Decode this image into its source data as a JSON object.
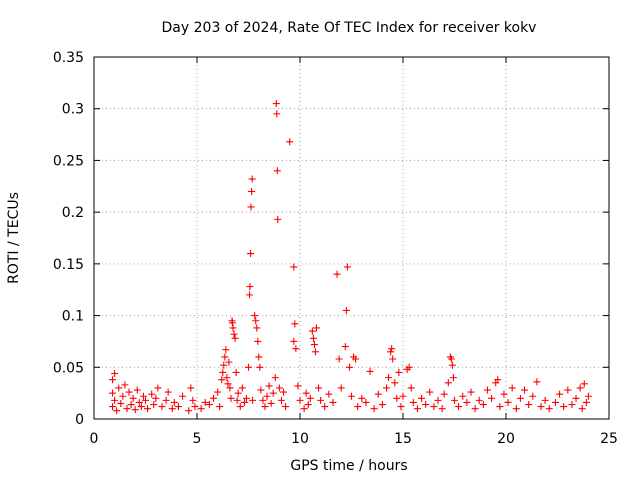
{
  "chart_data": {
    "type": "scatter",
    "title": "Day 203 of 2024, Rate Of TEC Index for receiver kokv",
    "xlabel": "GPS time / hours",
    "ylabel": "ROTI / TECUs",
    "xlim": [
      0,
      25
    ],
    "ylim": [
      0,
      0.35
    ],
    "x_ticks": [
      "0",
      "5",
      "10",
      "15",
      "20",
      "25"
    ],
    "y_ticks": [
      "0",
      "0.05",
      "0.1",
      "0.15",
      "0.2",
      "0.25",
      "0.3",
      "0.35"
    ],
    "grid": true,
    "legend": "none",
    "marker": "plus",
    "colors": {
      "marker": "#ff0000"
    },
    "series": [
      {
        "points": [
          [
            0.9,
            0.012
          ],
          [
            0.9,
            0.025
          ],
          [
            0.9,
            0.038
          ],
          [
            1.0,
            0.044
          ],
          [
            1.0,
            0.018
          ],
          [
            1.1,
            0.008
          ],
          [
            1.2,
            0.03
          ],
          [
            1.3,
            0.015
          ],
          [
            1.4,
            0.022
          ],
          [
            1.5,
            0.033
          ],
          [
            1.6,
            0.01
          ],
          [
            1.7,
            0.026
          ],
          [
            1.8,
            0.014
          ],
          [
            1.9,
            0.02
          ],
          [
            2.0,
            0.009
          ],
          [
            2.1,
            0.028
          ],
          [
            2.2,
            0.016
          ],
          [
            2.3,
            0.012
          ],
          [
            2.4,
            0.022
          ],
          [
            2.5,
            0.018
          ],
          [
            2.6,
            0.01
          ],
          [
            2.8,
            0.024
          ],
          [
            2.9,
            0.014
          ],
          [
            3.0,
            0.02
          ],
          [
            3.1,
            0.03
          ],
          [
            3.3,
            0.012
          ],
          [
            3.5,
            0.018
          ],
          [
            3.6,
            0.026
          ],
          [
            3.8,
            0.01
          ],
          [
            3.9,
            0.016
          ],
          [
            4.1,
            0.012
          ],
          [
            4.3,
            0.022
          ],
          [
            4.6,
            0.008
          ],
          [
            4.7,
            0.03
          ],
          [
            4.8,
            0.018
          ],
          [
            4.9,
            0.012
          ],
          [
            5.2,
            0.01
          ],
          [
            5.4,
            0.016
          ],
          [
            5.6,
            0.014
          ],
          [
            5.8,
            0.02
          ],
          [
            6.0,
            0.026
          ],
          [
            6.1,
            0.012
          ],
          [
            6.2,
            0.038
          ],
          [
            6.25,
            0.045
          ],
          [
            6.3,
            0.052
          ],
          [
            6.35,
            0.06
          ],
          [
            6.4,
            0.067
          ],
          [
            6.45,
            0.04
          ],
          [
            6.5,
            0.034
          ],
          [
            6.55,
            0.055
          ],
          [
            6.6,
            0.03
          ],
          [
            6.65,
            0.02
          ],
          [
            6.7,
            0.095
          ],
          [
            6.72,
            0.093
          ],
          [
            6.75,
            0.088
          ],
          [
            6.8,
            0.082
          ],
          [
            6.85,
            0.078
          ],
          [
            6.9,
            0.045
          ],
          [
            6.95,
            0.018
          ],
          [
            7.0,
            0.025
          ],
          [
            7.1,
            0.012
          ],
          [
            7.2,
            0.03
          ],
          [
            7.3,
            0.016
          ],
          [
            7.4,
            0.02
          ],
          [
            7.5,
            0.05
          ],
          [
            7.55,
            0.12
          ],
          [
            7.57,
            0.128
          ],
          [
            7.6,
            0.16
          ],
          [
            7.62,
            0.205
          ],
          [
            7.65,
            0.22
          ],
          [
            7.68,
            0.232
          ],
          [
            7.7,
            0.018
          ],
          [
            7.8,
            0.1
          ],
          [
            7.85,
            0.095
          ],
          [
            7.9,
            0.088
          ],
          [
            7.95,
            0.075
          ],
          [
            8.0,
            0.06
          ],
          [
            8.05,
            0.05
          ],
          [
            8.1,
            0.028
          ],
          [
            8.2,
            0.018
          ],
          [
            8.3,
            0.012
          ],
          [
            8.4,
            0.022
          ],
          [
            8.5,
            0.032
          ],
          [
            8.6,
            0.015
          ],
          [
            8.7,
            0.025
          ],
          [
            8.8,
            0.04
          ],
          [
            8.85,
            0.305
          ],
          [
            8.87,
            0.295
          ],
          [
            8.9,
            0.24
          ],
          [
            8.92,
            0.193
          ],
          [
            9.0,
            0.03
          ],
          [
            9.1,
            0.018
          ],
          [
            9.2,
            0.026
          ],
          [
            9.3,
            0.012
          ],
          [
            9.5,
            0.268
          ],
          [
            9.7,
            0.147
          ],
          [
            9.75,
            0.092
          ],
          [
            9.7,
            0.075
          ],
          [
            9.8,
            0.068
          ],
          [
            9.9,
            0.032
          ],
          [
            10.0,
            0.018
          ],
          [
            10.2,
            0.01
          ],
          [
            10.3,
            0.025
          ],
          [
            10.4,
            0.014
          ],
          [
            10.5,
            0.02
          ],
          [
            10.6,
            0.085
          ],
          [
            10.65,
            0.078
          ],
          [
            10.7,
            0.072
          ],
          [
            10.75,
            0.065
          ],
          [
            10.8,
            0.088
          ],
          [
            10.9,
            0.03
          ],
          [
            11.0,
            0.018
          ],
          [
            11.2,
            0.012
          ],
          [
            11.4,
            0.024
          ],
          [
            11.6,
            0.016
          ],
          [
            11.8,
            0.14
          ],
          [
            11.9,
            0.058
          ],
          [
            12.0,
            0.03
          ],
          [
            12.2,
            0.07
          ],
          [
            12.25,
            0.105
          ],
          [
            12.3,
            0.147
          ],
          [
            12.4,
            0.05
          ],
          [
            12.5,
            0.022
          ],
          [
            12.6,
            0.06
          ],
          [
            12.7,
            0.058
          ],
          [
            12.8,
            0.012
          ],
          [
            13.0,
            0.02
          ],
          [
            13.2,
            0.016
          ],
          [
            13.4,
            0.046
          ],
          [
            13.6,
            0.01
          ],
          [
            13.8,
            0.024
          ],
          [
            14.0,
            0.014
          ],
          [
            14.2,
            0.03
          ],
          [
            14.3,
            0.04
          ],
          [
            14.4,
            0.065
          ],
          [
            14.45,
            0.068
          ],
          [
            14.5,
            0.058
          ],
          [
            14.6,
            0.035
          ],
          [
            14.7,
            0.02
          ],
          [
            14.8,
            0.045
          ],
          [
            14.9,
            0.012
          ],
          [
            15.0,
            0.022
          ],
          [
            15.2,
            0.048
          ],
          [
            15.3,
            0.05
          ],
          [
            15.4,
            0.03
          ],
          [
            15.5,
            0.016
          ],
          [
            15.7,
            0.01
          ],
          [
            15.9,
            0.02
          ],
          [
            16.1,
            0.014
          ],
          [
            16.3,
            0.026
          ],
          [
            16.5,
            0.012
          ],
          [
            16.7,
            0.018
          ],
          [
            16.9,
            0.01
          ],
          [
            17.0,
            0.024
          ],
          [
            17.2,
            0.035
          ],
          [
            17.3,
            0.06
          ],
          [
            17.35,
            0.058
          ],
          [
            17.4,
            0.052
          ],
          [
            17.45,
            0.04
          ],
          [
            17.5,
            0.018
          ],
          [
            17.7,
            0.012
          ],
          [
            17.9,
            0.022
          ],
          [
            18.1,
            0.016
          ],
          [
            18.3,
            0.026
          ],
          [
            18.5,
            0.01
          ],
          [
            18.7,
            0.018
          ],
          [
            18.9,
            0.014
          ],
          [
            19.1,
            0.028
          ],
          [
            19.3,
            0.02
          ],
          [
            19.5,
            0.035
          ],
          [
            19.6,
            0.038
          ],
          [
            19.7,
            0.012
          ],
          [
            19.9,
            0.024
          ],
          [
            20.1,
            0.016
          ],
          [
            20.3,
            0.03
          ],
          [
            20.5,
            0.01
          ],
          [
            20.7,
            0.02
          ],
          [
            20.9,
            0.028
          ],
          [
            21.1,
            0.014
          ],
          [
            21.3,
            0.022
          ],
          [
            21.5,
            0.036
          ],
          [
            21.7,
            0.012
          ],
          [
            21.9,
            0.018
          ],
          [
            22.1,
            0.01
          ],
          [
            22.4,
            0.016
          ],
          [
            22.6,
            0.024
          ],
          [
            22.8,
            0.012
          ],
          [
            23.0,
            0.028
          ],
          [
            23.2,
            0.014
          ],
          [
            23.4,
            0.02
          ],
          [
            23.6,
            0.03
          ],
          [
            23.7,
            0.01
          ],
          [
            23.8,
            0.034
          ],
          [
            23.9,
            0.016
          ],
          [
            24.0,
            0.022
          ]
        ]
      }
    ]
  }
}
